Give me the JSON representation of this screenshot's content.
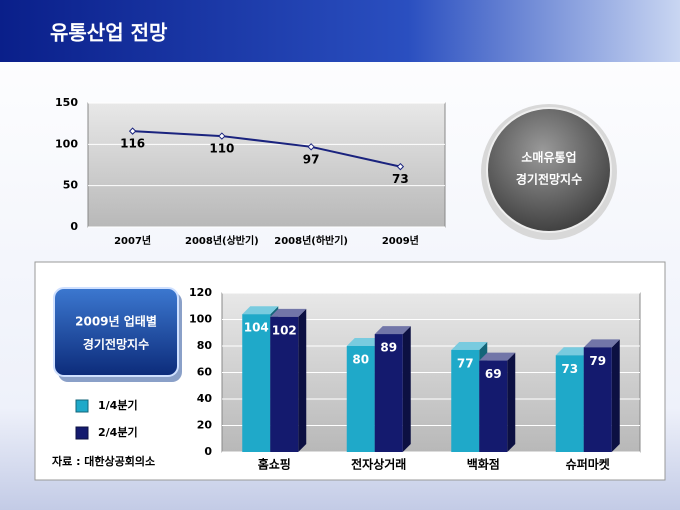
{
  "header": {
    "title": "유통산업 전망"
  },
  "badge": {
    "lines": [
      "소매유통업",
      "경기전망지수"
    ]
  },
  "panel": {
    "lines": [
      "2009년 업태별",
      "경기전망지수"
    ],
    "source": "자료 : 대한상공회의소"
  },
  "chart_data": [
    {
      "type": "line",
      "categories": [
        "2007년",
        "2008년(상반기)",
        "2008년(하반기)",
        "2009년"
      ],
      "series": [
        {
          "name": "소매유통업 경기전망지수",
          "color": "#1a237e",
          "values": [
            116,
            110,
            97,
            73
          ]
        }
      ],
      "ylim": [
        0,
        150
      ],
      "yticks": [
        0,
        50,
        100,
        150
      ],
      "grid": true
    },
    {
      "type": "bar",
      "categories": [
        "홈쇼핑",
        "전자상거래",
        "백화점",
        "슈퍼마켓"
      ],
      "series": [
        {
          "name": "1/4분기",
          "color": "#1fa9c9",
          "values": [
            104,
            80,
            77,
            73
          ]
        },
        {
          "name": "2/4분기",
          "color": "#141a6e",
          "values": [
            102,
            89,
            69,
            79
          ]
        }
      ],
      "ylim": [
        0,
        120
      ],
      "yticks": [
        0,
        20,
        40,
        60,
        80,
        100,
        120
      ],
      "grid": true,
      "legend": "left"
    }
  ]
}
